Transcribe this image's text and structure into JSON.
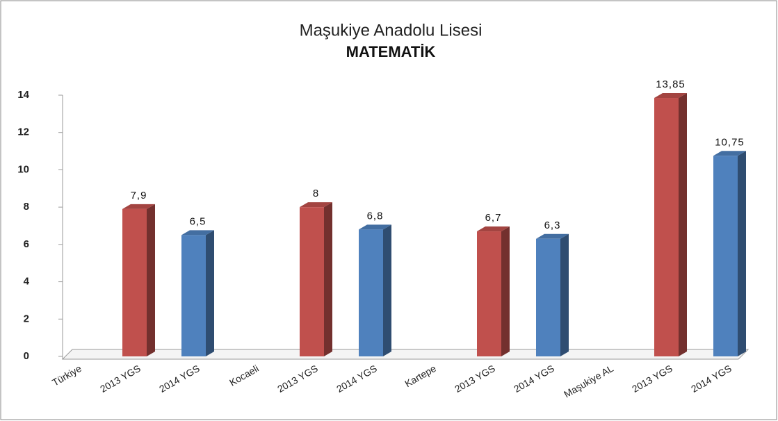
{
  "chart_data": {
    "type": "bar",
    "title": "Maşukiye Anadolu Lisesi",
    "subtitle": "MATEMATİK",
    "categories": [
      "Türkiye",
      "2013 YGS",
      "2014 YGS",
      "Kocaeli",
      "2013 YGS",
      "2014 YGS",
      "Kartepe",
      "2013 YGS",
      "2014 YGS",
      "Maşukiye AL",
      "2013 YGS",
      "2014 YGS"
    ],
    "values": [
      null,
      7.9,
      6.5,
      null,
      8,
      6.8,
      null,
      6.7,
      6.3,
      null,
      13.85,
      10.75
    ],
    "value_labels": [
      null,
      "7,9",
      "6,5",
      null,
      "8",
      "6,8",
      null,
      "6,7",
      "6,3",
      null,
      "13,85",
      "10,75"
    ],
    "colors": [
      null,
      "#c0504d",
      "#4f81bd",
      null,
      "#c0504d",
      "#4f81bd",
      null,
      "#c0504d",
      "#4f81bd",
      null,
      "#c0504d",
      "#4f81bd"
    ],
    "ylim": [
      0,
      14
    ],
    "yticks": [
      0,
      2,
      4,
      6,
      8,
      10,
      12,
      14
    ],
    "grid": false
  }
}
